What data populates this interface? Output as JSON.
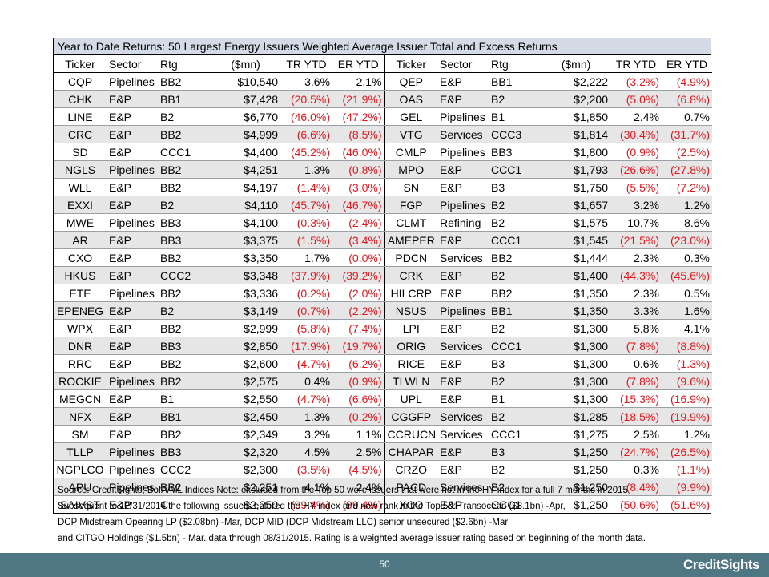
{
  "table": {
    "title": "Year to Date Returns: 50 Largest Energy Issuers Weighted Average Issuer Total and Excess Returns",
    "headers": [
      "Ticker",
      "Sector",
      "Rtg",
      "($mn)",
      "TR YTD",
      "ER YTD"
    ],
    "left_rows": [
      [
        "CQP",
        "Pipelines",
        "BB2",
        "$10,540",
        "3.6%",
        "2.1%"
      ],
      [
        "CHK",
        "E&P",
        "BB1",
        "$7,428",
        "(20.5%)",
        "(21.9%)"
      ],
      [
        "LINE",
        "E&P",
        "B2",
        "$6,770",
        "(46.0%)",
        "(47.2%)"
      ],
      [
        "CRC",
        "E&P",
        "BB2",
        "$4,999",
        "(6.6%)",
        "(8.5%)"
      ],
      [
        "SD",
        "E&P",
        "CCC1",
        "$4,400",
        "(45.2%)",
        "(46.0%)"
      ],
      [
        "NGLS",
        "Pipelines",
        "BB2",
        "$4,251",
        "1.3%",
        "(0.8%)"
      ],
      [
        "WLL",
        "E&P",
        "BB2",
        "$4,197",
        "(1.4%)",
        "(3.0%)"
      ],
      [
        "EXXI",
        "E&P",
        "B2",
        "$4,110",
        "(45.7%)",
        "(46.7%)"
      ],
      [
        "MWE",
        "Pipelines",
        "BB3",
        "$4,100",
        "(0.3%)",
        "(2.4%)"
      ],
      [
        "AR",
        "E&P",
        "BB3",
        "$3,375",
        "(1.5%)",
        "(3.4%)"
      ],
      [
        "CXO",
        "E&P",
        "BB2",
        "$3,350",
        "1.7%",
        "(0.0%)"
      ],
      [
        "HKUS",
        "E&P",
        "CCC2",
        "$3,348",
        "(37.9%)",
        "(39.2%)"
      ],
      [
        "ETE",
        "Pipelines",
        "BB2",
        "$3,336",
        "(0.2%)",
        "(2.0%)"
      ],
      [
        "EPENEG",
        "E&P",
        "B2",
        "$3,149",
        "(0.7%)",
        "(2.2%)"
      ],
      [
        "WPX",
        "E&P",
        "BB2",
        "$2,999",
        "(5.8%)",
        "(7.4%)"
      ],
      [
        "DNR",
        "E&P",
        "BB3",
        "$2,850",
        "(17.9%)",
        "(19.7%)"
      ],
      [
        "RRC",
        "E&P",
        "BB2",
        "$2,600",
        "(4.7%)",
        "(6.2%)"
      ],
      [
        "ROCKIE",
        "Pipelines",
        "BB2",
        "$2,575",
        "0.4%",
        "(0.9%)"
      ],
      [
        "MEGCN",
        "E&P",
        "B1",
        "$2,550",
        "(4.7%)",
        "(6.6%)"
      ],
      [
        "NFX",
        "E&P",
        "BB1",
        "$2,450",
        "1.3%",
        "(0.2%)"
      ],
      [
        "SM",
        "E&P",
        "BB2",
        "$2,349",
        "3.2%",
        "1.1%"
      ],
      [
        "TLLP",
        "Pipelines",
        "BB3",
        "$2,320",
        "4.5%",
        "2.5%"
      ],
      [
        "NGPLCO",
        "Pipelines",
        "CCC2",
        "$2,300",
        "(3.5%)",
        "(4.5%)"
      ],
      [
        "APU",
        "Pipelines",
        "BB2",
        "$2,251",
        "4.1%",
        "2.4%"
      ],
      [
        "SAIVST",
        "E&P",
        "C",
        "$2,250",
        "(99.4%)",
        "(99.4%)"
      ]
    ],
    "right_rows": [
      [
        "QEP",
        "E&P",
        "BB1",
        "$2,222",
        "(3.2%)",
        "(4.9%)"
      ],
      [
        "OAS",
        "E&P",
        "B2",
        "$2,200",
        "(5.0%)",
        "(6.8%)"
      ],
      [
        "GEL",
        "Pipelines",
        "B1",
        "$1,850",
        "2.4%",
        "0.7%"
      ],
      [
        "VTG",
        "Services",
        "CCC3",
        "$1,814",
        "(30.4%)",
        "(31.7%)"
      ],
      [
        "CMLP",
        "Pipelines",
        "BB3",
        "$1,800",
        "(0.9%)",
        "(2.5%)"
      ],
      [
        "MPO",
        "E&P",
        "CCC1",
        "$1,793",
        "(26.6%)",
        "(27.8%)"
      ],
      [
        "SN",
        "E&P",
        "B3",
        "$1,750",
        "(5.5%)",
        "(7.2%)"
      ],
      [
        "FGP",
        "Pipelines",
        "B2",
        "$1,657",
        "3.2%",
        "1.2%"
      ],
      [
        "CLMT",
        "Refining",
        "B2",
        "$1,575",
        "10.7%",
        "8.6%"
      ],
      [
        "AMEPER",
        "E&P",
        "CCC1",
        "$1,545",
        "(21.5%)",
        "(23.0%)"
      ],
      [
        "PDCN",
        "Services",
        "BB2",
        "$1,444",
        "2.3%",
        "0.3%"
      ],
      [
        "CRK",
        "E&P",
        "B2",
        "$1,400",
        "(44.3%)",
        "(45.6%)"
      ],
      [
        "HILCRP",
        "E&P",
        "BB2",
        "$1,350",
        "2.3%",
        "0.5%"
      ],
      [
        "NSUS",
        "Pipelines",
        "BB1",
        "$1,350",
        "3.3%",
        "1.6%"
      ],
      [
        "LPI",
        "E&P",
        "B2",
        "$1,300",
        "5.8%",
        "4.1%"
      ],
      [
        "ORIG",
        "Services",
        "CCC1",
        "$1,300",
        "(7.8%)",
        "(8.8%)"
      ],
      [
        "RICE",
        "E&P",
        "B3",
        "$1,300",
        "0.6%",
        "(1.3%)"
      ],
      [
        "TLWLN",
        "E&P",
        "B2",
        "$1,300",
        "(7.8%)",
        "(9.6%)"
      ],
      [
        "UPL",
        "E&P",
        "B1",
        "$1,300",
        "(15.3%)",
        "(16.9%)"
      ],
      [
        "CGGFP",
        "Services",
        "B2",
        "$1,285",
        "(18.5%)",
        "(19.9%)"
      ],
      [
        "CCRUCN",
        "Services",
        "CCC1",
        "$1,275",
        "2.5%",
        "1.2%"
      ],
      [
        "CHAPAR",
        "E&P",
        "B3",
        "$1,250",
        "(24.7%)",
        "(26.5%)"
      ],
      [
        "CRZO",
        "E&P",
        "B2",
        "$1,250",
        "0.3%",
        "(1.1%)"
      ],
      [
        "PACD",
        "Services",
        "B2",
        "$1,250",
        "(8.4%)",
        "(9.9%)"
      ],
      [
        "XCO",
        "E&P",
        "CCC1",
        "$1,250",
        "(50.6%)",
        "(51.6%)"
      ]
    ]
  },
  "notes": [
    "Source: CreditSights, BofA/ML Indices Note: excluded from the Top 50 were issuers that were not in the HY index for a full 7 months in 2015",
    "Subsequent to 12/31/2014 the following issuers entered the HY index and now rank in the Top 50: Transocean ($8.1bn) -Apr,",
    "DCP Midstream Opearing LP ($2.08bn) -Mar, DCP MID (DCP Midstream LLC) senior unsecured ($2.6bn) -Mar",
    "and CITGO Holdings ($1.5bn) - Mar.   data through 08/31/2015. Rating is a weighted average issuer rating based on beginning of the month data."
  ],
  "footer": {
    "page_number": "50",
    "logo": "CreditSights"
  },
  "colors": {
    "negative": "#e8141c",
    "title_bg": "#d4dbe6",
    "shade": "#e6e6e6",
    "footer_bg": "#4f7683"
  }
}
